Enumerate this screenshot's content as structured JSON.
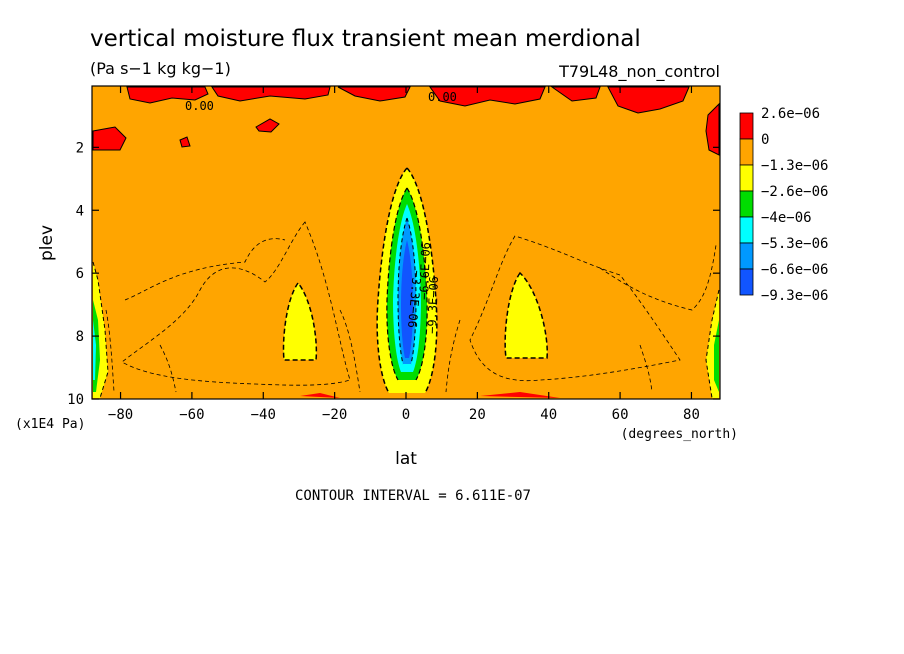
{
  "chart_data": {
    "type": "heatmap",
    "title": "vertical moisture flux transient mean merdional",
    "units": "(Pa s−1 kg kg−1)",
    "dataset": "T79L48_non_control",
    "xlabel": "lat",
    "x_unit": "(degrees_north)",
    "ylabel": "plev",
    "y_unit": "(x1E4 Pa)",
    "xlim": [
      -88,
      88
    ],
    "ylim": [
      10,
      0.05
    ],
    "x_ticks": [
      -80,
      -60,
      -40,
      -20,
      0,
      20,
      40,
      60,
      80
    ],
    "y_ticks": [
      2,
      4,
      6,
      8,
      10
    ],
    "contour_interval_text": "CONTOUR INTERVAL = 6.611E-07",
    "contour_labels": [
      "0.00",
      "0.00",
      "−3.3E−06",
      "−6.6E−06",
      "−9.3E−06"
    ],
    "colorbar": {
      "labels": [
        "2.6e−06",
        "0",
        "−1.3e−06",
        "−2.6e−06",
        "−4e−06",
        "−5.3e−06",
        "−6.6e−06",
        "−9.3e−06"
      ],
      "colors": [
        "#ff0000",
        "#ffa500",
        "#ffff00",
        "#00dd00",
        "#00ffff",
        "#0099ff",
        "#1155ff"
      ]
    },
    "features": [
      {
        "region": "equator",
        "lat": 0,
        "plev_range": [
          3.0,
          10
        ],
        "min_value": -9.3e-06
      },
      {
        "region": "south subtropics",
        "lat": -32,
        "plev_range": [
          6.5,
          8.5
        ],
        "value_range": [
          -2.6e-06,
          -1.3e-06
        ]
      },
      {
        "region": "north subtropics",
        "lat": 32,
        "plev_range": [
          6.5,
          8.5
        ],
        "value_range": [
          -2.6e-06,
          -1.3e-06
        ]
      },
      {
        "region": "upper levels",
        "plev_range": [
          0,
          1.2
        ],
        "value_range": [
          0,
          2.6e-06
        ]
      }
    ]
  }
}
